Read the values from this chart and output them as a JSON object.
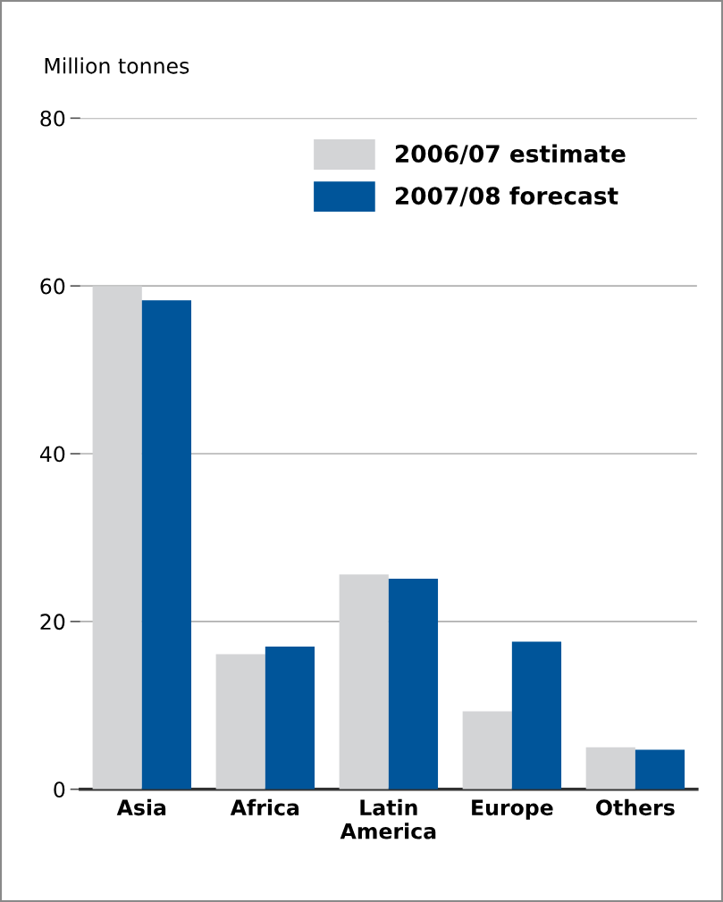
{
  "chart_data": {
    "type": "bar",
    "ylabel": "Million tonnes",
    "categories": [
      "Asia",
      "Africa",
      "Latin\nAmerica",
      "Europe",
      "Others"
    ],
    "series": [
      {
        "name": "2006/07 estimate",
        "color": "#d3d4d6",
        "values": [
          60.0,
          16.1,
          25.6,
          9.3,
          5.0
        ]
      },
      {
        "name": "2007/08 forecast",
        "color": "#00559a",
        "values": [
          58.3,
          17.0,
          25.1,
          17.6,
          4.7
        ]
      }
    ],
    "ylim": [
      0,
      80
    ],
    "yticks": [
      0,
      20,
      40,
      60,
      80
    ],
    "grid": "y",
    "legend": "top right"
  }
}
